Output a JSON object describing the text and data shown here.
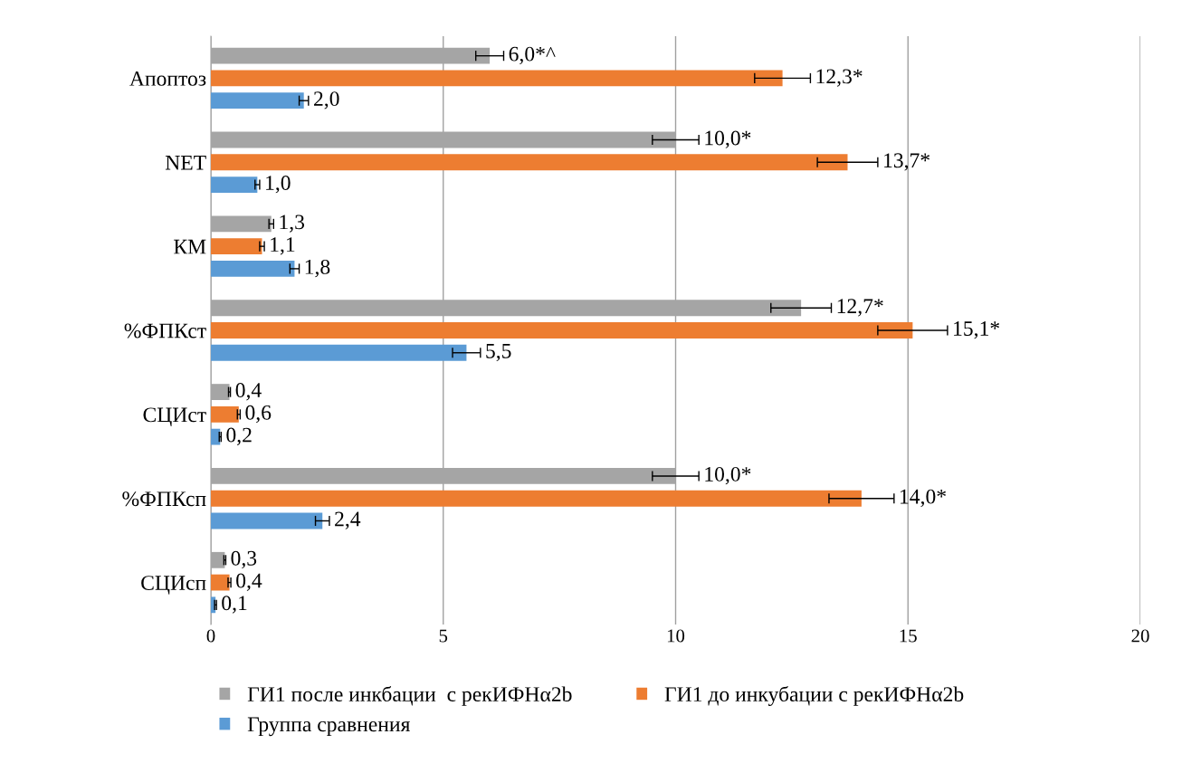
{
  "chart_data": {
    "type": "bar",
    "orientation": "horizontal",
    "categories": [
      "Апоптоз",
      "NET",
      "КМ",
      "%ФПКст",
      "СЦИст",
      "%ФПКсп",
      "СЦИсп"
    ],
    "series": [
      {
        "name": "ГИ1 после инкбации  с рекИФНα2b",
        "color": "#a5a5a5",
        "values": [
          6.0,
          10.0,
          1.3,
          12.7,
          0.4,
          10.0,
          0.3
        ],
        "errors": [
          0.3,
          0.5,
          0.05,
          0.65,
          0.02,
          0.5,
          0.02
        ],
        "value_labels": [
          "6,0*^",
          "10,0*",
          "1,3",
          "12,7*",
          "0,4",
          "10,0*",
          "0,3"
        ]
      },
      {
        "name": "ГИ1 до инкубации с рекИФНα2b",
        "color": "#ed7d31",
        "values": [
          12.3,
          13.7,
          1.1,
          15.1,
          0.6,
          14.0,
          0.4
        ],
        "errors": [
          0.6,
          0.65,
          0.05,
          0.75,
          0.03,
          0.7,
          0.03
        ],
        "value_labels": [
          "12,3*",
          "13,7*",
          "1,1",
          "15,1*",
          "0,6",
          "14,0*",
          "0,4"
        ]
      },
      {
        "name": "Группа сравнения",
        "color": "#5b9bd5",
        "values": [
          2.0,
          1.0,
          1.8,
          5.5,
          0.2,
          2.4,
          0.1
        ],
        "errors": [
          0.1,
          0.05,
          0.1,
          0.3,
          0.02,
          0.15,
          0.02
        ],
        "value_labels": [
          "2,0",
          "1,0",
          "1,8",
          "5,5",
          "0,2",
          "2,4",
          "0,1"
        ]
      }
    ],
    "xlim": [
      0,
      20
    ],
    "xticks": [
      0,
      5,
      10,
      15,
      20
    ],
    "grid": "x",
    "legend": "bottom"
  }
}
